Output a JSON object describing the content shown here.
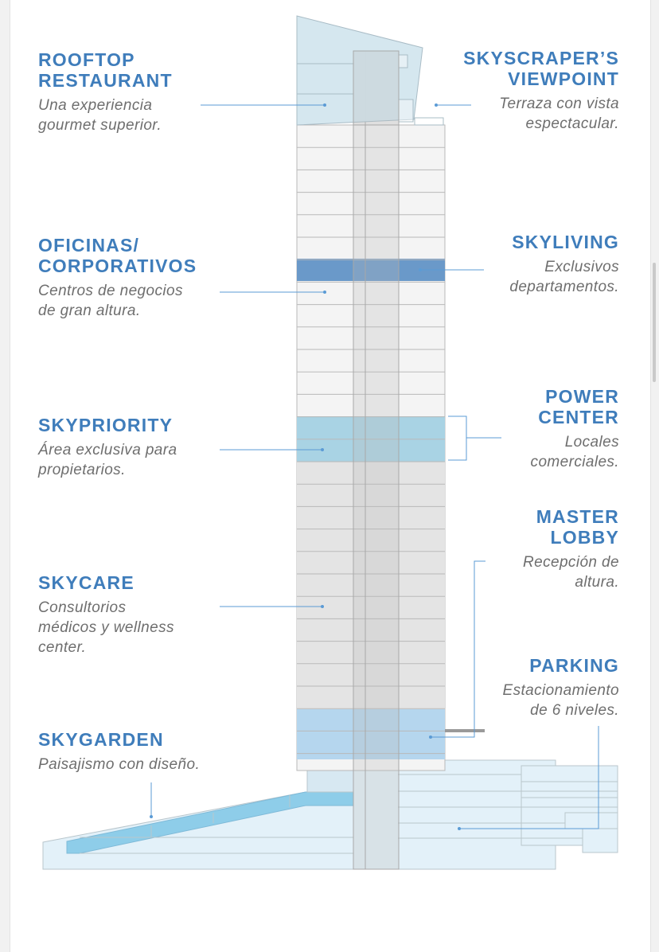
{
  "colors": {
    "accent": "#3f7dbb",
    "body_text": "#6e6e6e",
    "skyliving": "#6a99c9",
    "power_center": "#a9d3e4",
    "skygarden_band": "#b5d6ee",
    "rooftop_glass": "#d3e6ee",
    "base_glass": "#e3f1f9",
    "garden_ramp": "#8ecde9"
  },
  "labels": {
    "rooftop": {
      "title": "ROOFTOP\nRESTAURANT",
      "desc": "Una experiencia\ngourmet superior."
    },
    "viewpoint": {
      "title": "SKYSCRAPER’S\nVIEWPOINT",
      "desc": "Terraza con vista\nespectacular."
    },
    "oficinas": {
      "title": "OFICINAS/\nCORPORATIVOS",
      "desc": "Centros de negocios\nde gran altura."
    },
    "skyliving": {
      "title": "SKYLIVING",
      "desc": "Exclusivos\ndepartamentos."
    },
    "skypriority": {
      "title": "SKYPRIORITY",
      "desc": "Área exclusiva para\npropietarios."
    },
    "power": {
      "title": "POWER\nCENTER",
      "desc": "Locales\ncomerciales."
    },
    "master": {
      "title": "MASTER\nLOBBY",
      "desc": "Recepción de\naltura."
    },
    "skycare": {
      "title": "SKYCARE",
      "desc": "Consultorios\nmédicos y wellness\ncenter."
    },
    "parking": {
      "title": "PARKING",
      "desc": "Estacionamiento\nde 6 niveles."
    },
    "skygarden": {
      "title": "SKYGARDEN",
      "desc": "Paisajismo con diseño."
    }
  }
}
